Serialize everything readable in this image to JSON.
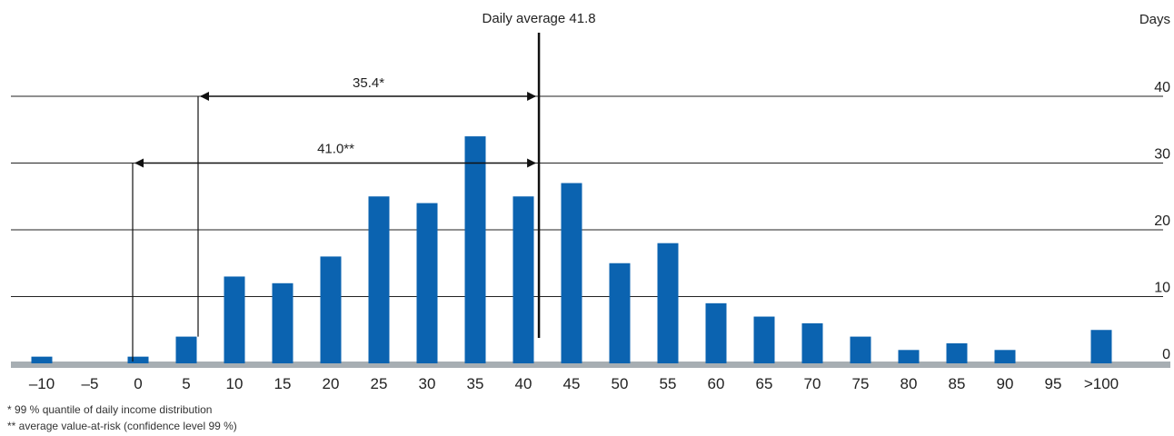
{
  "chart_data": {
    "type": "bar",
    "categories": [
      "–10",
      "–5",
      "0",
      "5",
      "10",
      "15",
      "20",
      "25",
      "30",
      "35",
      "40",
      "45",
      "50",
      "55",
      "60",
      "65",
      "70",
      "75",
      "80",
      "85",
      "90",
      "95",
      ">100"
    ],
    "values": [
      1,
      0,
      1,
      4,
      13,
      12,
      16,
      25,
      24,
      34,
      25,
      27,
      15,
      18,
      9,
      7,
      6,
      4,
      2,
      3,
      2,
      0,
      5
    ],
    "ylabel": "Days",
    "yticks": [
      0,
      10,
      20,
      30,
      40
    ],
    "ylim": [
      0,
      40
    ],
    "grid": true,
    "bar_color": "#0b63b0",
    "baseline_color": "#a7aeb3",
    "annotations": {
      "average_label": "Daily average 41.8",
      "average_value": 41.8,
      "var_99_label": "35.4*",
      "var_99_value": 35.4,
      "avg_var_label": "41.0**",
      "avg_var_value": 41.0
    }
  },
  "footnotes": [
    "*   99 % quantile of daily income distribution",
    "** average value-at-risk (confidence level 99 %)"
  ]
}
